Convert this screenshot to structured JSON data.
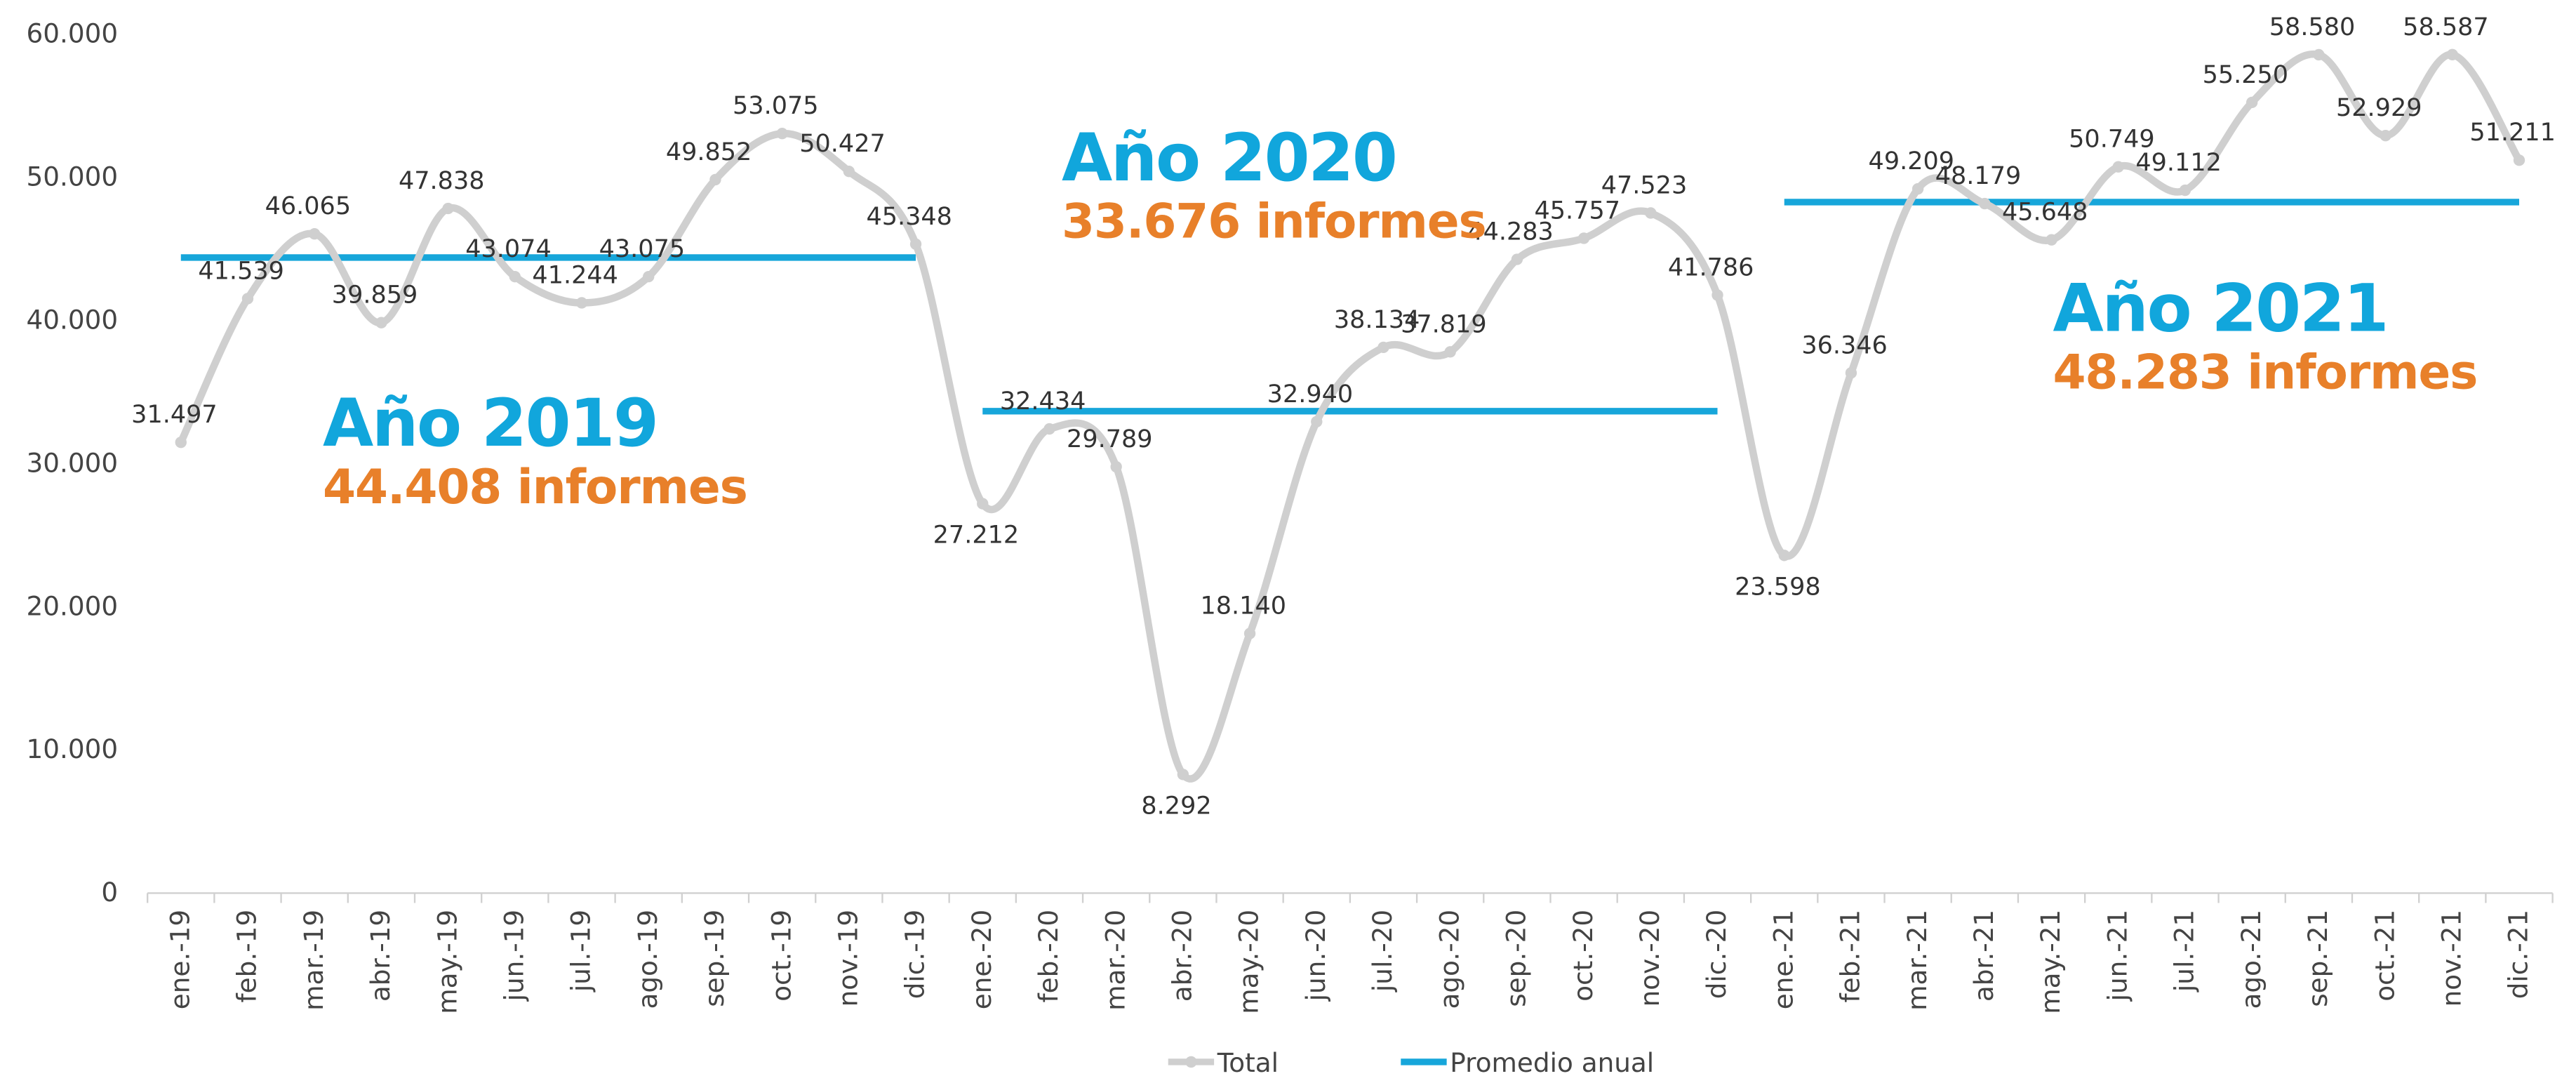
{
  "chart_data": {
    "type": "line",
    "categories": [
      "ene.-19",
      "feb.-19",
      "mar.-19",
      "abr.-19",
      "may.-19",
      "jun.-19",
      "jul.-19",
      "ago.-19",
      "sep.-19",
      "oct.-19",
      "nov.-19",
      "dic.-19",
      "ene.-20",
      "feb.-20",
      "mar.-20",
      "abr.-20",
      "may.-20",
      "jun.-20",
      "jul.-20",
      "ago.-20",
      "sep.-20",
      "oct.-20",
      "nov.-20",
      "dic.-20",
      "ene.-21",
      "feb.-21",
      "mar.-21",
      "abr.-21",
      "may.-21",
      "jun.-21",
      "jul.-21",
      "ago.-21",
      "sep.-21",
      "oct.-21",
      "nov.-21",
      "dic.-21"
    ],
    "series": [
      {
        "name": "Total",
        "color": "#cfcfcf",
        "values": [
          31497,
          41539,
          46065,
          39859,
          47838,
          43074,
          41244,
          43075,
          49852,
          53075,
          50427,
          45348,
          27212,
          32434,
          29789,
          8292,
          18140,
          32940,
          38134,
          37819,
          44283,
          45757,
          47523,
          41786,
          23598,
          36346,
          49209,
          48179,
          45648,
          50749,
          49112,
          55250,
          58580,
          52929,
          58587,
          51211
        ],
        "value_labels": [
          "31.497",
          "41.539",
          "46.065",
          "39.859",
          "47.838",
          "43.074",
          "41.244",
          "43.075",
          "49.852",
          "53.075",
          "50.427",
          "45.348",
          "27.212",
          "32.434",
          "29.789",
          "8.292",
          "18.140",
          "32.940",
          "38.134",
          "37.819",
          "44.283",
          "45.757",
          "47.523",
          "41.786",
          "23.598",
          "36.346",
          "49.209",
          "48.179",
          "45.648",
          "50.749",
          "49.112",
          "55.250",
          "58.580",
          "52.929",
          "58.587",
          "51.211"
        ]
      },
      {
        "name": "Promedio anual",
        "color": "#17a6da",
        "values": [
          44408,
          44408,
          44408,
          44408,
          44408,
          44408,
          44408,
          44408,
          44408,
          44408,
          44408,
          44408,
          33676,
          33676,
          33676,
          33676,
          33676,
          33676,
          33676,
          33676,
          33676,
          33676,
          33676,
          33676,
          48283,
          48283,
          48283,
          48283,
          48283,
          48283,
          48283,
          48283,
          48283,
          48283,
          48283,
          48283
        ]
      }
    ],
    "annotations": [
      "Año 2019",
      "44.408 informes",
      "Año 2020",
      "33.676 informes",
      "Año 2021",
      "48.283 informes"
    ],
    "ylim": [
      0,
      60000
    ],
    "yticks": [
      0,
      {
        "value": 10000,
        "label": "10.000"
      },
      {
        "value": 20000,
        "label": "20.000"
      },
      {
        "value": 30000,
        "label": "30.000"
      },
      {
        "value": 40000,
        "label": "40.000"
      },
      {
        "value": 50000,
        "label": "50.000"
      },
      {
        "value": 60000,
        "label": "60.000"
      }
    ],
    "grid": false,
    "legend": "bottom"
  }
}
